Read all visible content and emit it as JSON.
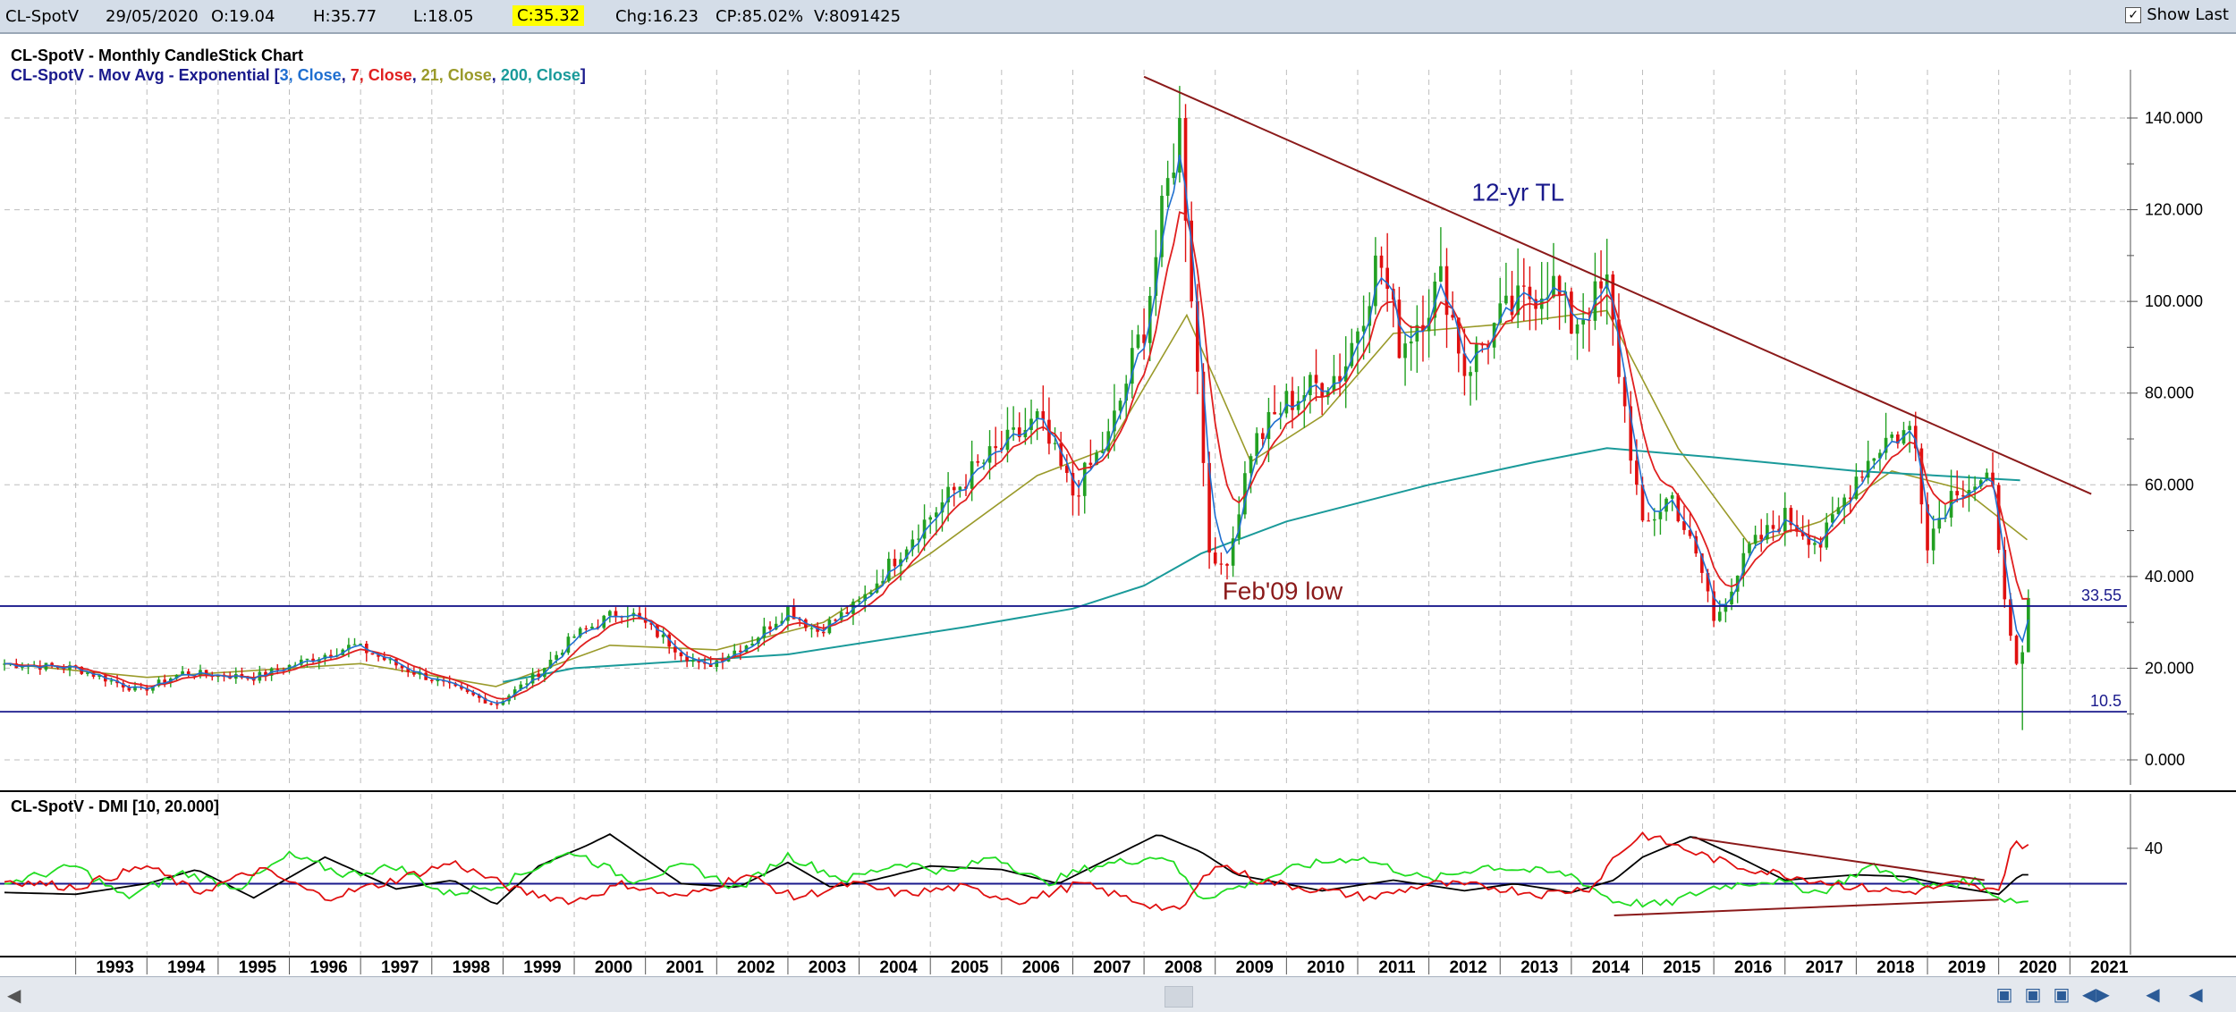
{
  "toolbar": {
    "symbol": "CL-SpotV",
    "date": "29/05/2020",
    "open": "O:19.04",
    "high": "H:35.77",
    "low": "L:18.05",
    "close": "C:35.32",
    "change": "Chg:16.23",
    "change_pct": "CP:85.02%",
    "volume": "V:8091425",
    "show_last_label": "Show Last",
    "show_last_checked": true
  },
  "legend": {
    "title": "CL-SpotV - Monthly CandleStick Chart",
    "ma_prefix": "CL-SpotV - Mov Avg - Exponential [",
    "ma_parts": [
      {
        "text": "3, Close",
        "color": "#1f6fd0"
      },
      {
        "text": ", ",
        "color": "#1a1a8c"
      },
      {
        "text": "7, Close",
        "color": "#e02020"
      },
      {
        "text": ", ",
        "color": "#1a1a8c"
      },
      {
        "text": "21, Close",
        "color": "#9a9a2a"
      },
      {
        "text": ", ",
        "color": "#1a1a8c"
      },
      {
        "text": "200, Close",
        "color": "#1a9a9a"
      }
    ],
    "ma_suffix": "]",
    "dmi_title": "CL-SpotV - DMI [10, 20.000]"
  },
  "colors": {
    "up": "#22a022",
    "down": "#e01010",
    "ema3": "#1f6fd0",
    "ema7": "#e02020",
    "ema21": "#9a9a2a",
    "ema200": "#1a9a9a",
    "trendline": "#8b1a1a",
    "hline": "#1a1a8c",
    "dmi_plus": "#22dd22",
    "dmi_minus": "#e01010",
    "adx": "#000000"
  },
  "chart_data": [
    {
      "type": "candlestick",
      "title": "CL-SpotV - Monthly CandleStick Chart",
      "ylim": [
        0,
        150
      ],
      "y_ticks": [
        "0.000",
        "20.000",
        "40.000",
        "60.000",
        "80.000",
        "100.000",
        "120.000",
        "140.000"
      ],
      "y_tick_values": [
        0,
        20,
        40,
        60,
        80,
        100,
        120,
        140
      ],
      "x_labels": [
        "1993",
        "1994",
        "1995",
        "1996",
        "1997",
        "1998",
        "1999",
        "2000",
        "2001",
        "2002",
        "2003",
        "2004",
        "2005",
        "2006",
        "2007",
        "2008",
        "2009",
        "2010",
        "2011",
        "2012",
        "2013",
        "2014",
        "2015",
        "2016",
        "2017",
        "2018",
        "2019",
        "2020",
        "2021"
      ],
      "x_range": [
        1992.0,
        2021.8
      ],
      "series_anchors": [
        [
          1992.0,
          21
        ],
        [
          1993.0,
          20
        ],
        [
          1993.9,
          15
        ],
        [
          1994.5,
          19
        ],
        [
          1995.5,
          18
        ],
        [
          1996.5,
          23
        ],
        [
          1996.9,
          25
        ],
        [
          1997.6,
          20
        ],
        [
          1998.9,
          12
        ],
        [
          1999.5,
          19
        ],
        [
          2000.0,
          27
        ],
        [
          2000.7,
          33
        ],
        [
          2001.8,
          20
        ],
        [
          2002.5,
          26
        ],
        [
          2003.0,
          33
        ],
        [
          2003.4,
          28
        ],
        [
          2004.0,
          34
        ],
        [
          2004.8,
          50
        ],
        [
          2005.6,
          63
        ],
        [
          2006.5,
          74
        ],
        [
          2007.0,
          58
        ],
        [
          2007.5,
          70
        ],
        [
          2008.0,
          95
        ],
        [
          2008.5,
          140
        ],
        [
          2008.95,
          40
        ],
        [
          2009.2,
          45
        ],
        [
          2009.5,
          68
        ],
        [
          2010.0,
          78
        ],
        [
          2010.8,
          85
        ],
        [
          2011.3,
          110
        ],
        [
          2011.6,
          90
        ],
        [
          2012.2,
          105
        ],
        [
          2012.5,
          85
        ],
        [
          2013.0,
          96
        ],
        [
          2013.7,
          105
        ],
        [
          2014.0,
          95
        ],
        [
          2014.5,
          103
        ],
        [
          2015.0,
          50
        ],
        [
          2015.4,
          58
        ],
        [
          2015.9,
          38
        ],
        [
          2016.0,
          30
        ],
        [
          2016.5,
          46
        ],
        [
          2017.0,
          53
        ],
        [
          2017.5,
          47
        ],
        [
          2018.0,
          62
        ],
        [
          2018.4,
          70
        ],
        [
          2018.8,
          72
        ],
        [
          2019.0,
          48
        ],
        [
          2019.4,
          60
        ],
        [
          2019.9,
          60
        ],
        [
          2020.2,
          22
        ],
        [
          2020.3,
          18
        ],
        [
          2020.42,
          35
        ]
      ],
      "ema_anchors": {
        "ema21": [
          [
            1992.0,
            21
          ],
          [
            1994.0,
            18
          ],
          [
            1997.0,
            21
          ],
          [
            1998.9,
            16
          ],
          [
            2000.5,
            25
          ],
          [
            2002.0,
            24
          ],
          [
            2003.5,
            30
          ],
          [
            2005.0,
            45
          ],
          [
            2006.5,
            62
          ],
          [
            2007.5,
            68
          ],
          [
            2008.6,
            97
          ],
          [
            2009.5,
            65
          ],
          [
            2010.5,
            75
          ],
          [
            2011.5,
            93
          ],
          [
            2013.0,
            95
          ],
          [
            2014.5,
            98
          ],
          [
            2015.5,
            68
          ],
          [
            2016.5,
            47
          ],
          [
            2017.5,
            52
          ],
          [
            2018.5,
            63
          ],
          [
            2019.5,
            59
          ],
          [
            2020.4,
            48
          ]
        ],
        "ema200": [
          [
            1999.0,
            17
          ],
          [
            2000.0,
            20
          ],
          [
            2003.0,
            23
          ],
          [
            2005.5,
            29
          ],
          [
            2007.0,
            33
          ],
          [
            2008.0,
            38
          ],
          [
            2008.8,
            45
          ],
          [
            2010.0,
            52
          ],
          [
            2012.0,
            60
          ],
          [
            2013.5,
            65
          ],
          [
            2014.5,
            68
          ],
          [
            2016.0,
            66
          ],
          [
            2018.0,
            63
          ],
          [
            2020.3,
            61
          ]
        ]
      },
      "trendline_12yr": {
        "label": "12-yr TL",
        "from": [
          2008.0,
          149
        ],
        "to": [
          2021.3,
          58
        ]
      },
      "horizontal_lines": [
        {
          "value": 33.55,
          "label": "33.55"
        },
        {
          "value": 10.5,
          "label": "10.5"
        }
      ],
      "annotations": [
        {
          "text": "12-yr TL",
          "x": 2012.6,
          "y": 122
        },
        {
          "text": "Feb'09 low",
          "x": 2009.1,
          "y": 35
        }
      ],
      "low_2020": 6.5,
      "high_2008": 147
    },
    {
      "type": "line",
      "title": "CL-SpotV - DMI [10, 20.000]",
      "ylim": [
        0,
        55
      ],
      "y_ticks": [
        "40"
      ],
      "y_tick_values": [
        40
      ],
      "horizontal_line": 20,
      "series": [
        {
          "key": "adx",
          "values": [
            [
              1992,
              15
            ],
            [
              1993,
              14
            ],
            [
              1994,
              20
            ],
            [
              1994.7,
              28
            ],
            [
              1995.5,
              12
            ],
            [
              1996.5,
              35
            ],
            [
              1997.5,
              17
            ],
            [
              1998.3,
              22
            ],
            [
              1998.9,
              8
            ],
            [
              1999.5,
              30
            ],
            [
              2000.2,
              42
            ],
            [
              2000.5,
              48
            ],
            [
              2001.5,
              20
            ],
            [
              2002.3,
              18
            ],
            [
              2003.0,
              32
            ],
            [
              2003.6,
              18
            ],
            [
              2004.2,
              22
            ],
            [
              2005.0,
              30
            ],
            [
              2006.0,
              28
            ],
            [
              2006.8,
              20
            ],
            [
              2007.4,
              32
            ],
            [
              2008.2,
              48
            ],
            [
              2008.8,
              38
            ],
            [
              2009.3,
              25
            ],
            [
              2010.5,
              16
            ],
            [
              2011.5,
              22
            ],
            [
              2012.5,
              16
            ],
            [
              2013.2,
              20
            ],
            [
              2014.0,
              15
            ],
            [
              2014.6,
              22
            ],
            [
              2015.0,
              35
            ],
            [
              2015.7,
              47
            ],
            [
              2016.3,
              36
            ],
            [
              2017.0,
              22
            ],
            [
              2018.0,
              25
            ],
            [
              2018.7,
              24
            ],
            [
              2019.4,
              18
            ],
            [
              2020.0,
              14
            ],
            [
              2020.3,
              25
            ]
          ]
        },
        {
          "key": "plus",
          "values": [
            [
              1992,
              20
            ],
            [
              1993,
              30
            ],
            [
              1993.7,
              12
            ],
            [
              1994.5,
              26
            ],
            [
              1995.3,
              18
            ],
            [
              1996.0,
              36
            ],
            [
              1996.8,
              25
            ],
            [
              1997.5,
              30
            ],
            [
              1998.2,
              14
            ],
            [
              1999.0,
              20
            ],
            [
              1999.6,
              32
            ],
            [
              2000.0,
              38
            ],
            [
              2000.8,
              22
            ],
            [
              2001.6,
              30
            ],
            [
              2002.3,
              17
            ],
            [
              2003.0,
              36
            ],
            [
              2003.8,
              22
            ],
            [
              2004.6,
              32
            ],
            [
              2005.3,
              26
            ],
            [
              2005.9,
              36
            ],
            [
              2006.6,
              20
            ],
            [
              2007.3,
              30
            ],
            [
              2008.3,
              36
            ],
            [
              2008.8,
              12
            ],
            [
              2009.5,
              20
            ],
            [
              2010.2,
              30
            ],
            [
              2011.0,
              35
            ],
            [
              2012.0,
              22
            ],
            [
              2012.8,
              30
            ],
            [
              2014.0,
              25
            ],
            [
              2014.6,
              10
            ],
            [
              2015.3,
              8
            ],
            [
              2016.0,
              18
            ],
            [
              2016.8,
              22
            ],
            [
              2017.5,
              15
            ],
            [
              2018.2,
              30
            ],
            [
              2019.0,
              18
            ],
            [
              2019.7,
              22
            ],
            [
              2020.0,
              12
            ],
            [
              2020.3,
              10
            ]
          ]
        },
        {
          "key": "minus",
          "values": [
            [
              1992,
              22
            ],
            [
              1993,
              18
            ],
            [
              1994.0,
              30
            ],
            [
              1994.7,
              15
            ],
            [
              1995.6,
              28
            ],
            [
              1996.5,
              12
            ],
            [
              1997.3,
              20
            ],
            [
              1998.3,
              32
            ],
            [
              1999.2,
              16
            ],
            [
              2000.0,
              10
            ],
            [
              2000.7,
              20
            ],
            [
              2001.5,
              12
            ],
            [
              2002.4,
              25
            ],
            [
              2003.1,
              12
            ],
            [
              2003.9,
              20
            ],
            [
              2004.6,
              14
            ],
            [
              2005.4,
              18
            ],
            [
              2006.3,
              10
            ],
            [
              2007.1,
              20
            ],
            [
              2007.9,
              10
            ],
            [
              2008.5,
              4
            ],
            [
              2009.0,
              32
            ],
            [
              2009.6,
              22
            ],
            [
              2010.5,
              16
            ],
            [
              2011.2,
              12
            ],
            [
              2012.0,
              20
            ],
            [
              2012.9,
              18
            ],
            [
              2013.6,
              14
            ],
            [
              2014.3,
              18
            ],
            [
              2014.6,
              35
            ],
            [
              2015.0,
              48
            ],
            [
              2015.7,
              38
            ],
            [
              2016.3,
              30
            ],
            [
              2017.0,
              25
            ],
            [
              2018.0,
              18
            ],
            [
              2018.7,
              15
            ],
            [
              2019.4,
              20
            ],
            [
              2020.0,
              15
            ],
            [
              2020.2,
              45
            ],
            [
              2020.4,
              40
            ]
          ]
        }
      ],
      "trend_lines": [
        {
          "from": [
            2015.7,
            46
          ],
          "to": [
            2019.8,
            22
          ]
        },
        {
          "from": [
            2014.6,
            2
          ],
          "to": [
            2020.0,
            11
          ]
        }
      ]
    }
  ],
  "bottom_bar": {
    "scroll_left": "◀",
    "buttons": [
      "▣",
      "▣",
      "▣",
      "◀▶",
      "◀",
      "◀"
    ]
  }
}
